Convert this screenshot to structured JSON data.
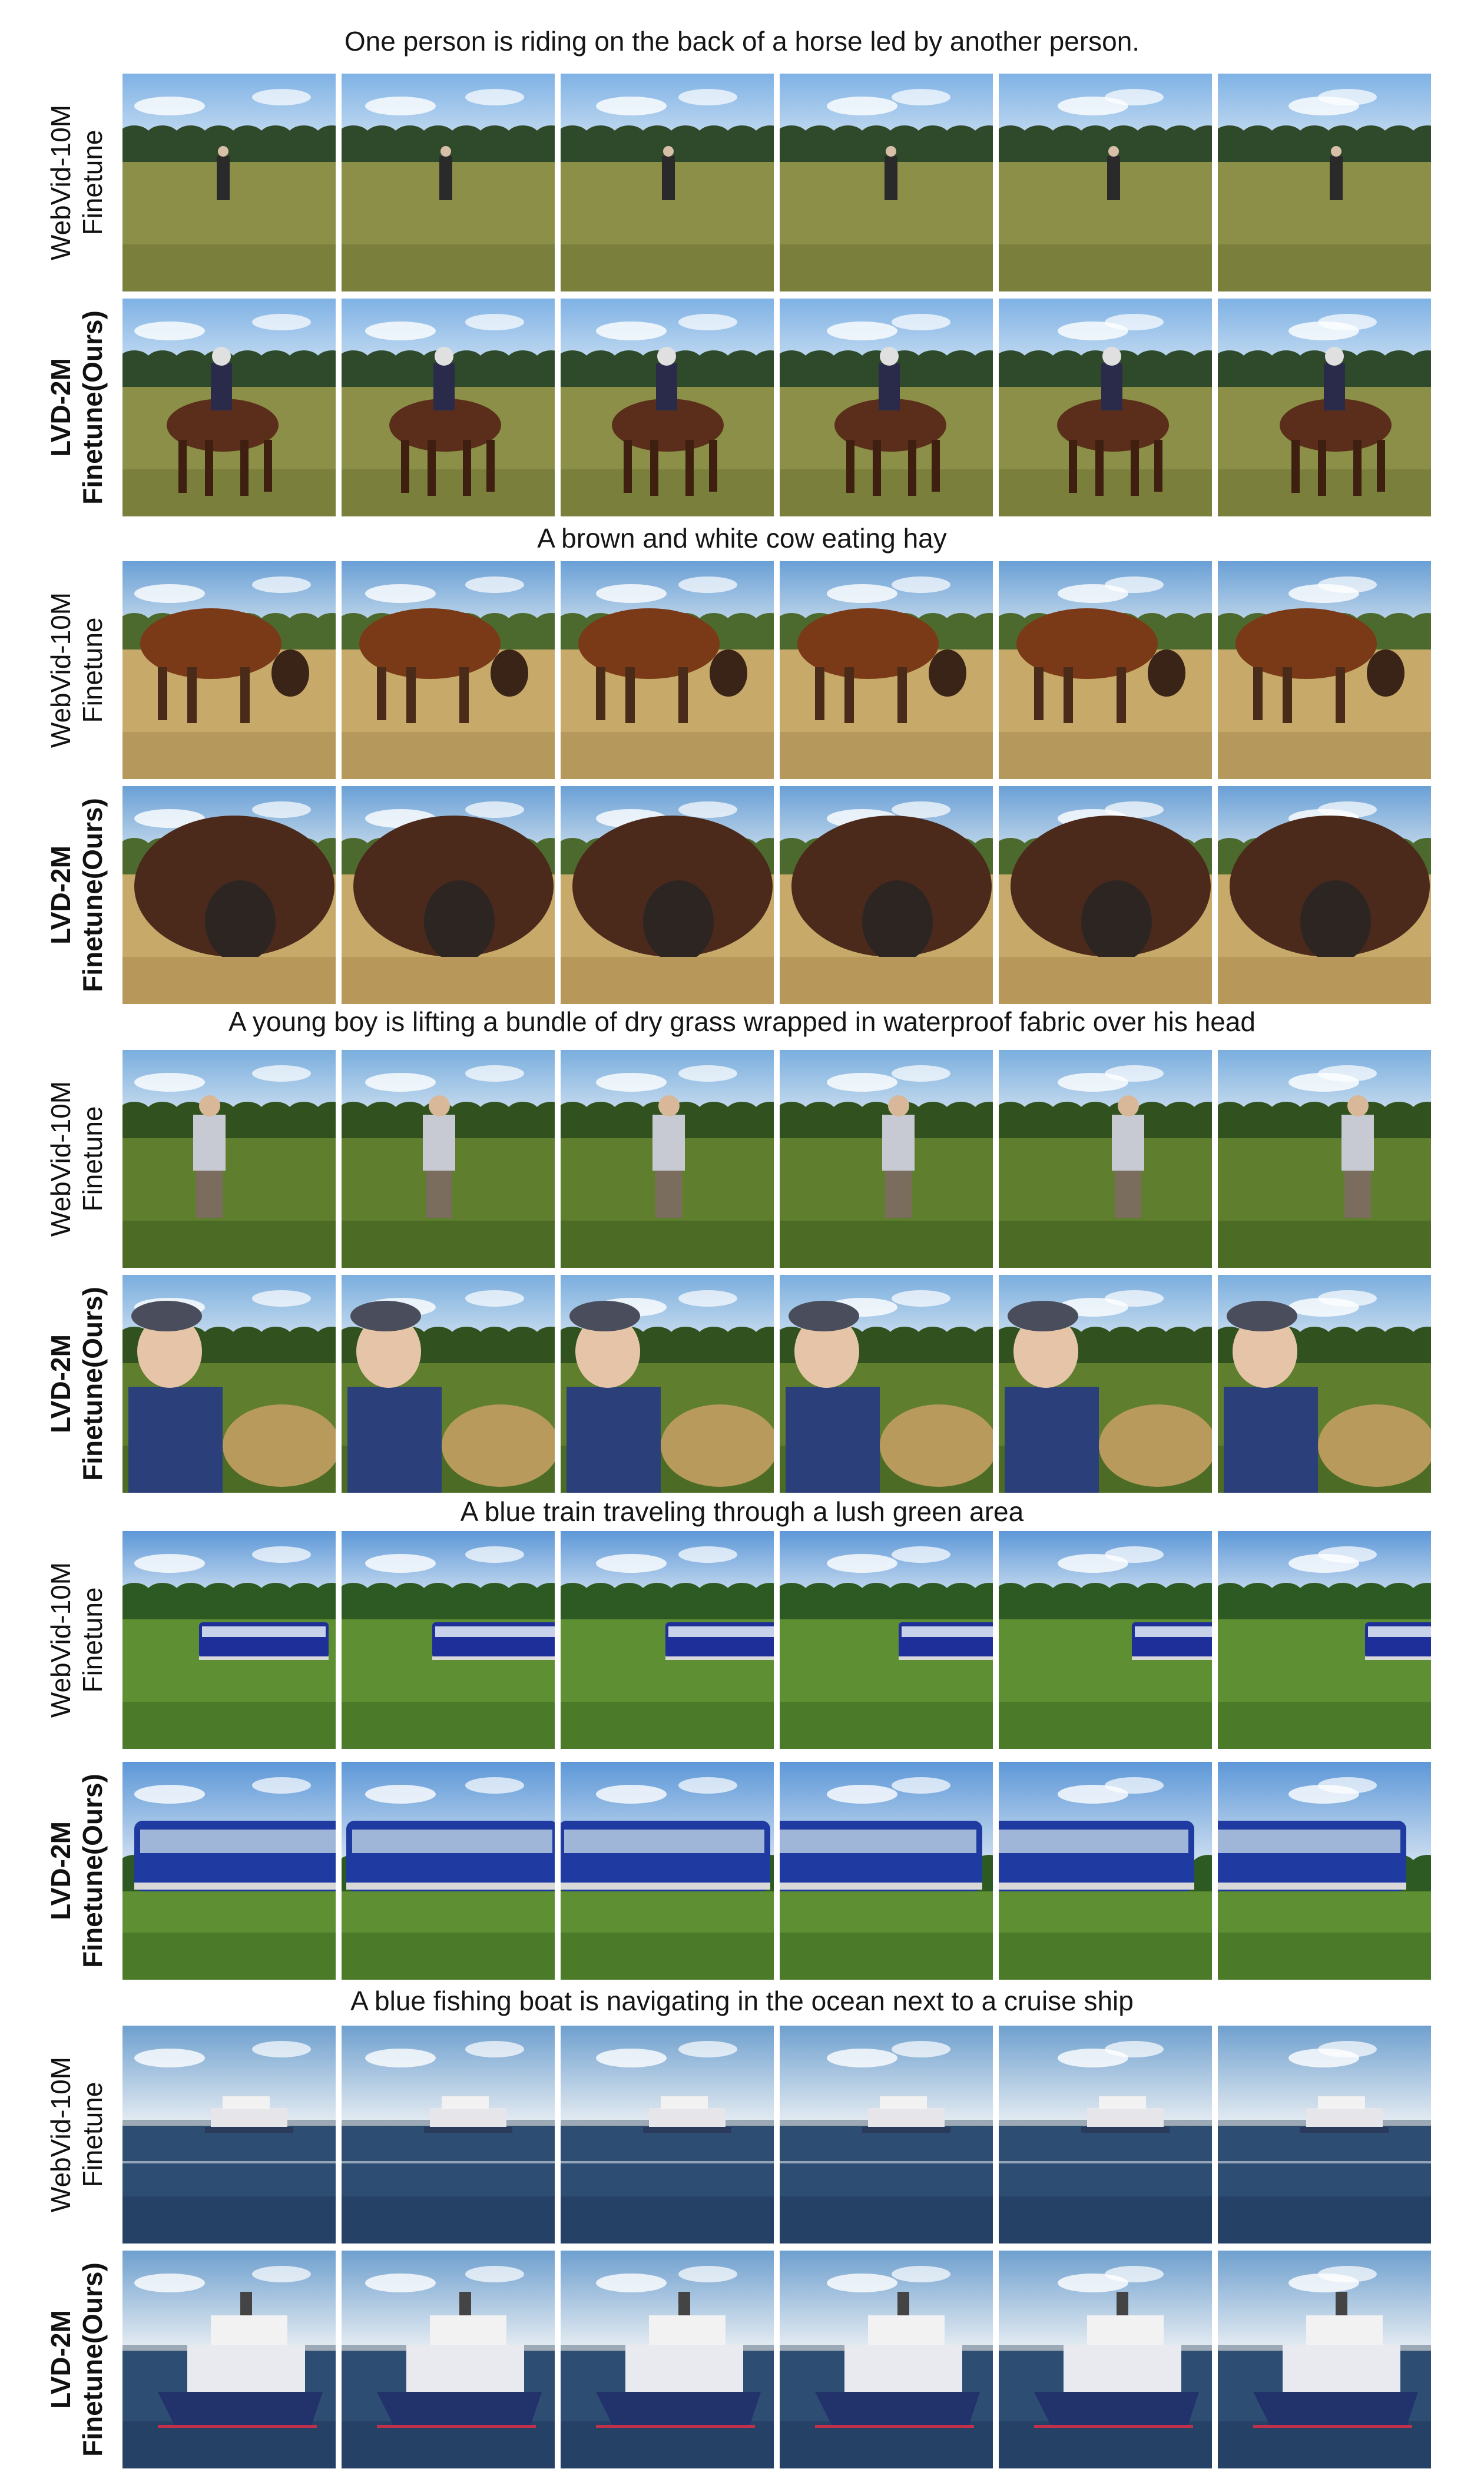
{
  "figure": {
    "groups": [
      {
        "caption": "One person is riding on the back of a horse led by another person.",
        "scene": "horse",
        "rows": [
          {
            "label_line1": "WebVid-10M",
            "label_line2": "Finetune",
            "variant": "baseline"
          },
          {
            "label_line1": "LVD-2M",
            "label_line2": "Finetune(Ours)",
            "variant": "ours"
          }
        ]
      },
      {
        "caption": "A brown and white cow eating hay",
        "scene": "cow",
        "rows": [
          {
            "label_line1": "WebVid-10M",
            "label_line2": "Finetune",
            "variant": "baseline"
          },
          {
            "label_line1": "LVD-2M",
            "label_line2": "Finetune(Ours)",
            "variant": "ours"
          }
        ]
      },
      {
        "caption": "A young boy is lifting a bundle of dry grass wrapped in waterproof fabric over his head",
        "scene": "boy",
        "rows": [
          {
            "label_line1": "WebVid-10M",
            "label_line2": "Finetune",
            "variant": "baseline"
          },
          {
            "label_line1": "LVD-2M",
            "label_line2": "Finetune(Ours)",
            "variant": "ours"
          }
        ]
      },
      {
        "caption": "A blue train traveling through a lush green area",
        "scene": "train",
        "rows": [
          {
            "label_line1": "WebVid-10M",
            "label_line2": "Finetune",
            "variant": "baseline"
          },
          {
            "label_line1": "LVD-2M",
            "label_line2": "Finetune(Ours)",
            "variant": "ours"
          }
        ]
      },
      {
        "caption": "A blue fishing boat is navigating in the ocean next to a cruise ship",
        "scene": "boat",
        "rows": [
          {
            "label_line1": "WebVid-10M",
            "label_line2": "Finetune",
            "variant": "baseline"
          },
          {
            "label_line1": "LVD-2M",
            "label_line2": "Finetune(Ours)",
            "variant": "ours"
          }
        ]
      }
    ],
    "frames_per_row": 6
  }
}
